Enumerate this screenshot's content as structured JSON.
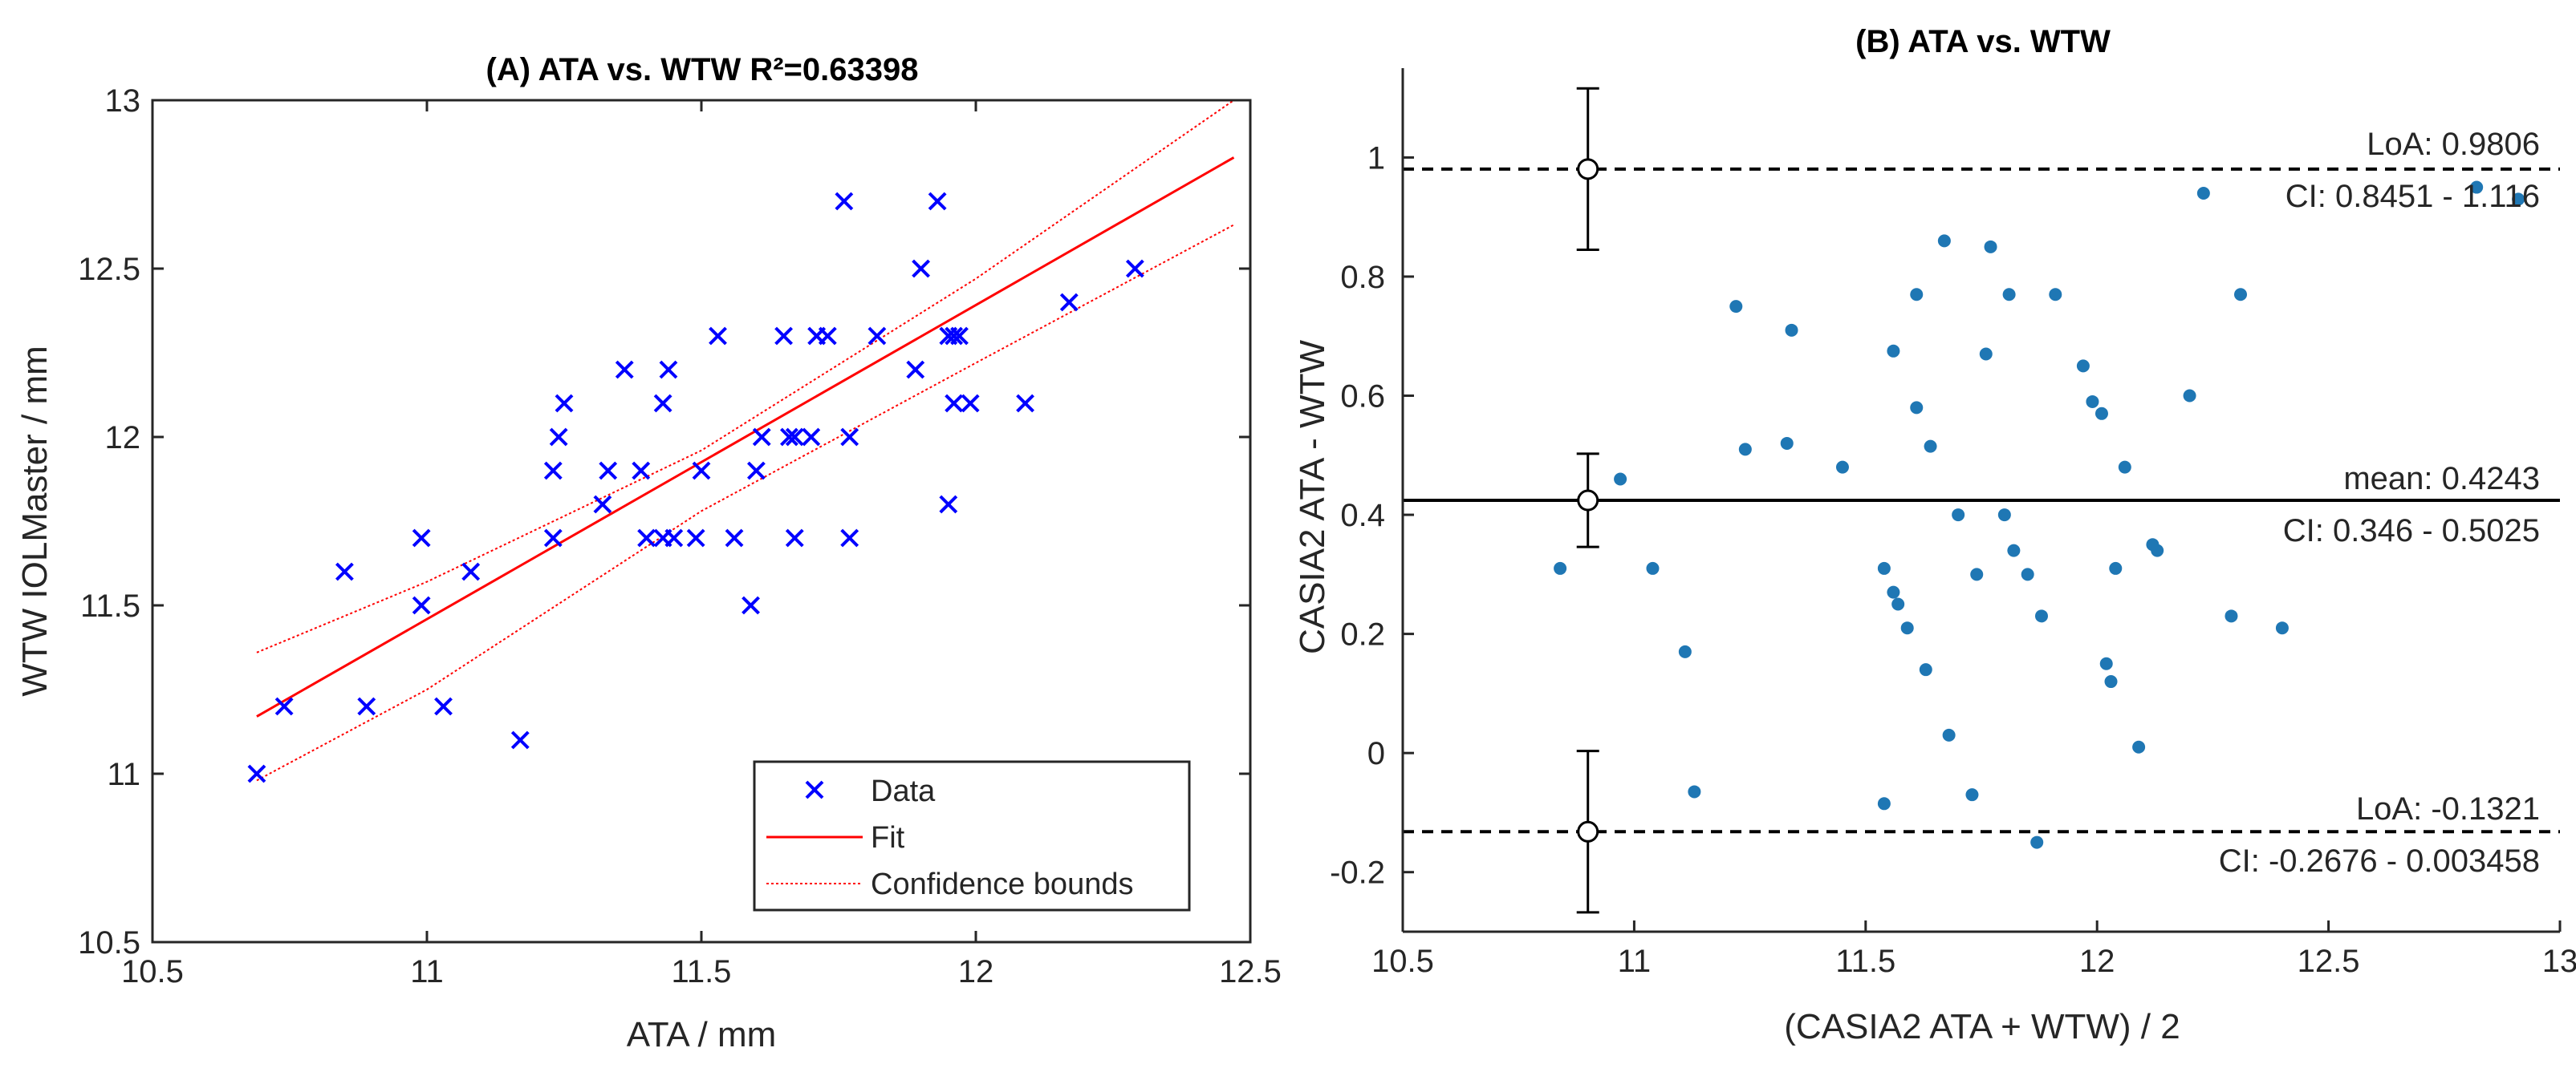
{
  "chart_data": [
    {
      "type": "scatter",
      "title": "(A) ATA vs. WTW R²=0.63398",
      "xlabel": "ATA / mm",
      "ylabel": "WTW IOLMaster / mm",
      "xlim": [
        10.5,
        12.5
      ],
      "ylim": [
        10.5,
        13
      ],
      "xticks": [
        "10.5",
        "11",
        "11.5",
        "12",
        "12.5"
      ],
      "yticks": [
        "10.5",
        "11",
        "11.5",
        "12",
        "12.5",
        "13"
      ],
      "grid": false,
      "legend_position": "bottom-right",
      "legend": [
        "Data",
        "Fit",
        "Confidence bounds"
      ],
      "colors": {
        "data": "#0000ff",
        "fit": "#ff0000",
        "bounds": "#ff0000"
      },
      "points": [
        [
          10.69,
          11.0
        ],
        [
          10.74,
          11.2
        ],
        [
          10.85,
          11.6
        ],
        [
          10.89,
          11.2
        ],
        [
          10.99,
          11.7
        ],
        [
          10.99,
          11.5
        ],
        [
          11.03,
          11.2
        ],
        [
          11.08,
          11.6
        ],
        [
          11.17,
          11.1
        ],
        [
          11.23,
          11.7
        ],
        [
          11.23,
          11.9
        ],
        [
          11.24,
          12.0
        ],
        [
          11.25,
          12.1
        ],
        [
          11.32,
          11.8
        ],
        [
          11.33,
          11.9
        ],
        [
          11.36,
          12.2
        ],
        [
          11.39,
          11.9
        ],
        [
          11.4,
          11.7
        ],
        [
          11.43,
          12.1
        ],
        [
          11.43,
          11.7
        ],
        [
          11.44,
          12.2
        ],
        [
          11.45,
          11.7
        ],
        [
          11.49,
          11.7
        ],
        [
          11.5,
          11.9
        ],
        [
          11.53,
          12.3
        ],
        [
          11.56,
          11.7
        ],
        [
          11.59,
          11.5
        ],
        [
          11.6,
          11.9
        ],
        [
          11.61,
          12.0
        ],
        [
          11.65,
          12.3
        ],
        [
          11.66,
          12.0
        ],
        [
          11.67,
          11.7
        ],
        [
          11.67,
          12.0
        ],
        [
          11.7,
          12.0
        ],
        [
          11.71,
          12.3
        ],
        [
          11.73,
          12.3
        ],
        [
          11.76,
          12.7
        ],
        [
          11.77,
          12.0
        ],
        [
          11.77,
          11.7
        ],
        [
          11.82,
          12.3
        ],
        [
          11.89,
          12.2
        ],
        [
          11.9,
          12.5
        ],
        [
          11.93,
          12.7
        ],
        [
          11.95,
          12.3
        ],
        [
          11.95,
          11.8
        ],
        [
          11.96,
          12.1
        ],
        [
          11.96,
          12.3
        ],
        [
          11.97,
          12.3
        ],
        [
          11.99,
          12.1
        ],
        [
          12.09,
          12.1
        ],
        [
          12.17,
          12.4
        ],
        [
          12.29,
          12.5
        ]
      ],
      "fit_line": [
        [
          10.69,
          11.17
        ],
        [
          12.47,
          12.83
        ]
      ],
      "confidence_upper": [
        [
          10.69,
          11.36
        ],
        [
          11.0,
          11.57
        ],
        [
          11.5,
          11.96
        ],
        [
          12.0,
          12.47
        ],
        [
          12.47,
          13.0
        ]
      ],
      "confidence_lower": [
        [
          10.69,
          10.98
        ],
        [
          11.0,
          11.25
        ],
        [
          11.5,
          11.78
        ],
        [
          12.0,
          12.22
        ],
        [
          12.47,
          12.63
        ]
      ]
    },
    {
      "type": "scatter",
      "title": "(B) ATA vs. WTW",
      "xlabel": "(CASIA2 ATA + WTW) / 2",
      "ylabel": "CASIA2 ATA - WTW",
      "xlim": [
        10.5,
        13
      ],
      "ylim": [
        -0.3,
        1.15
      ],
      "xticks": [
        "10.5",
        "11",
        "11.5",
        "12",
        "12.5",
        "13"
      ],
      "yticks": [
        "-0.2",
        "0",
        "0.2",
        "0.4",
        "0.6",
        "0.8",
        "1"
      ],
      "grid": false,
      "colors": {
        "data": "#1f77b4",
        "lines": "#000000"
      },
      "points": [
        [
          10.84,
          0.31
        ],
        [
          10.97,
          0.46
        ],
        [
          11.04,
          0.31
        ],
        [
          11.11,
          0.17
        ],
        [
          11.13,
          -0.065
        ],
        [
          11.22,
          0.75
        ],
        [
          11.24,
          0.51
        ],
        [
          11.33,
          0.52
        ],
        [
          11.34,
          0.71
        ],
        [
          11.45,
          0.48
        ],
        [
          11.54,
          0.31
        ],
        [
          11.54,
          -0.085
        ],
        [
          11.56,
          0.27
        ],
        [
          11.56,
          0.675
        ],
        [
          11.57,
          0.25
        ],
        [
          11.59,
          0.21
        ],
        [
          11.61,
          0.58
        ],
        [
          11.61,
          0.77
        ],
        [
          11.63,
          0.14
        ],
        [
          11.64,
          0.515
        ],
        [
          11.67,
          0.86
        ],
        [
          11.68,
          0.03
        ],
        [
          11.7,
          0.4
        ],
        [
          11.73,
          -0.07
        ],
        [
          11.74,
          0.3
        ],
        [
          11.76,
          0.67
        ],
        [
          11.77,
          0.85
        ],
        [
          11.8,
          0.4
        ],
        [
          11.81,
          0.77
        ],
        [
          11.82,
          0.34
        ],
        [
          11.85,
          0.3
        ],
        [
          11.87,
          -0.15
        ],
        [
          11.88,
          0.23
        ],
        [
          11.91,
          0.77
        ],
        [
          11.97,
          0.65
        ],
        [
          11.99,
          0.59
        ],
        [
          12.01,
          0.57
        ],
        [
          12.02,
          0.15
        ],
        [
          12.03,
          0.12
        ],
        [
          12.04,
          0.31
        ],
        [
          12.06,
          0.48
        ],
        [
          12.09,
          0.01
        ],
        [
          12.12,
          0.35
        ],
        [
          12.13,
          0.34
        ],
        [
          12.2,
          0.6
        ],
        [
          12.23,
          0.94
        ],
        [
          12.29,
          0.23
        ],
        [
          12.31,
          0.77
        ],
        [
          12.4,
          0.21
        ],
        [
          12.82,
          0.95
        ],
        [
          12.91,
          0.93
        ]
      ],
      "mean": 0.4243,
      "loa_upper": 0.9806,
      "loa_lower": -0.1321,
      "ci_mean": [
        0.346,
        0.5025
      ],
      "ci_upper": [
        0.8451,
        1.116
      ],
      "ci_lower": [
        -0.2676,
        0.003458
      ],
      "errorbar_x": 10.9,
      "annotations": {
        "loa_upper": "LoA: 0.9806",
        "ci_upper": "CI: 0.8451 - 1.116",
        "mean": "mean: 0.4243",
        "ci_mean": "CI: 0.346 - 0.5025",
        "loa_lower": "LoA: -0.1321",
        "ci_lower": "CI: -0.2676 - 0.003458"
      }
    }
  ]
}
